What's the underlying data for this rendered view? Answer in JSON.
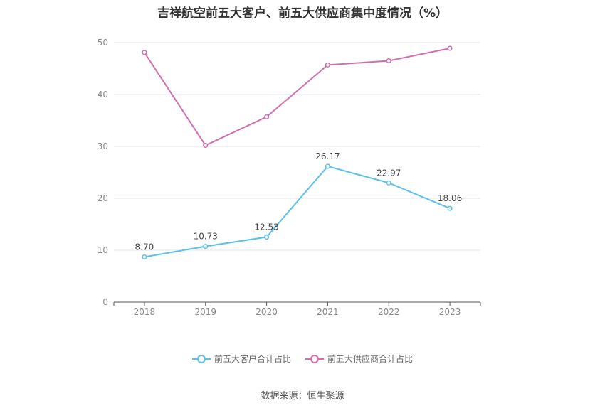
{
  "chart_data": {
    "type": "line",
    "title": "吉祥航空前五大客户、前五大供应商集中度情况（%）",
    "categories": [
      "2018",
      "2019",
      "2020",
      "2021",
      "2022",
      "2023"
    ],
    "ylim": [
      0,
      50
    ],
    "yticks": [
      0,
      10,
      20,
      30,
      40,
      50
    ],
    "grid": true,
    "legend_position": "bottom",
    "series": [
      {
        "name": "前五大客户合计占比",
        "color": "#5bc0eb",
        "values": [
          8.7,
          10.73,
          12.53,
          26.17,
          22.97,
          18.06
        ],
        "labels": [
          "8.70",
          "10.73",
          "12.53",
          "26.17",
          "22.97",
          "18.06"
        ]
      },
      {
        "name": "前五大供应商合计占比",
        "color": "#d46db0",
        "values": [
          48.1,
          30.2,
          35.7,
          45.7,
          46.5,
          48.9
        ],
        "labels": []
      }
    ]
  },
  "source": "数据来源：恒生聚源"
}
